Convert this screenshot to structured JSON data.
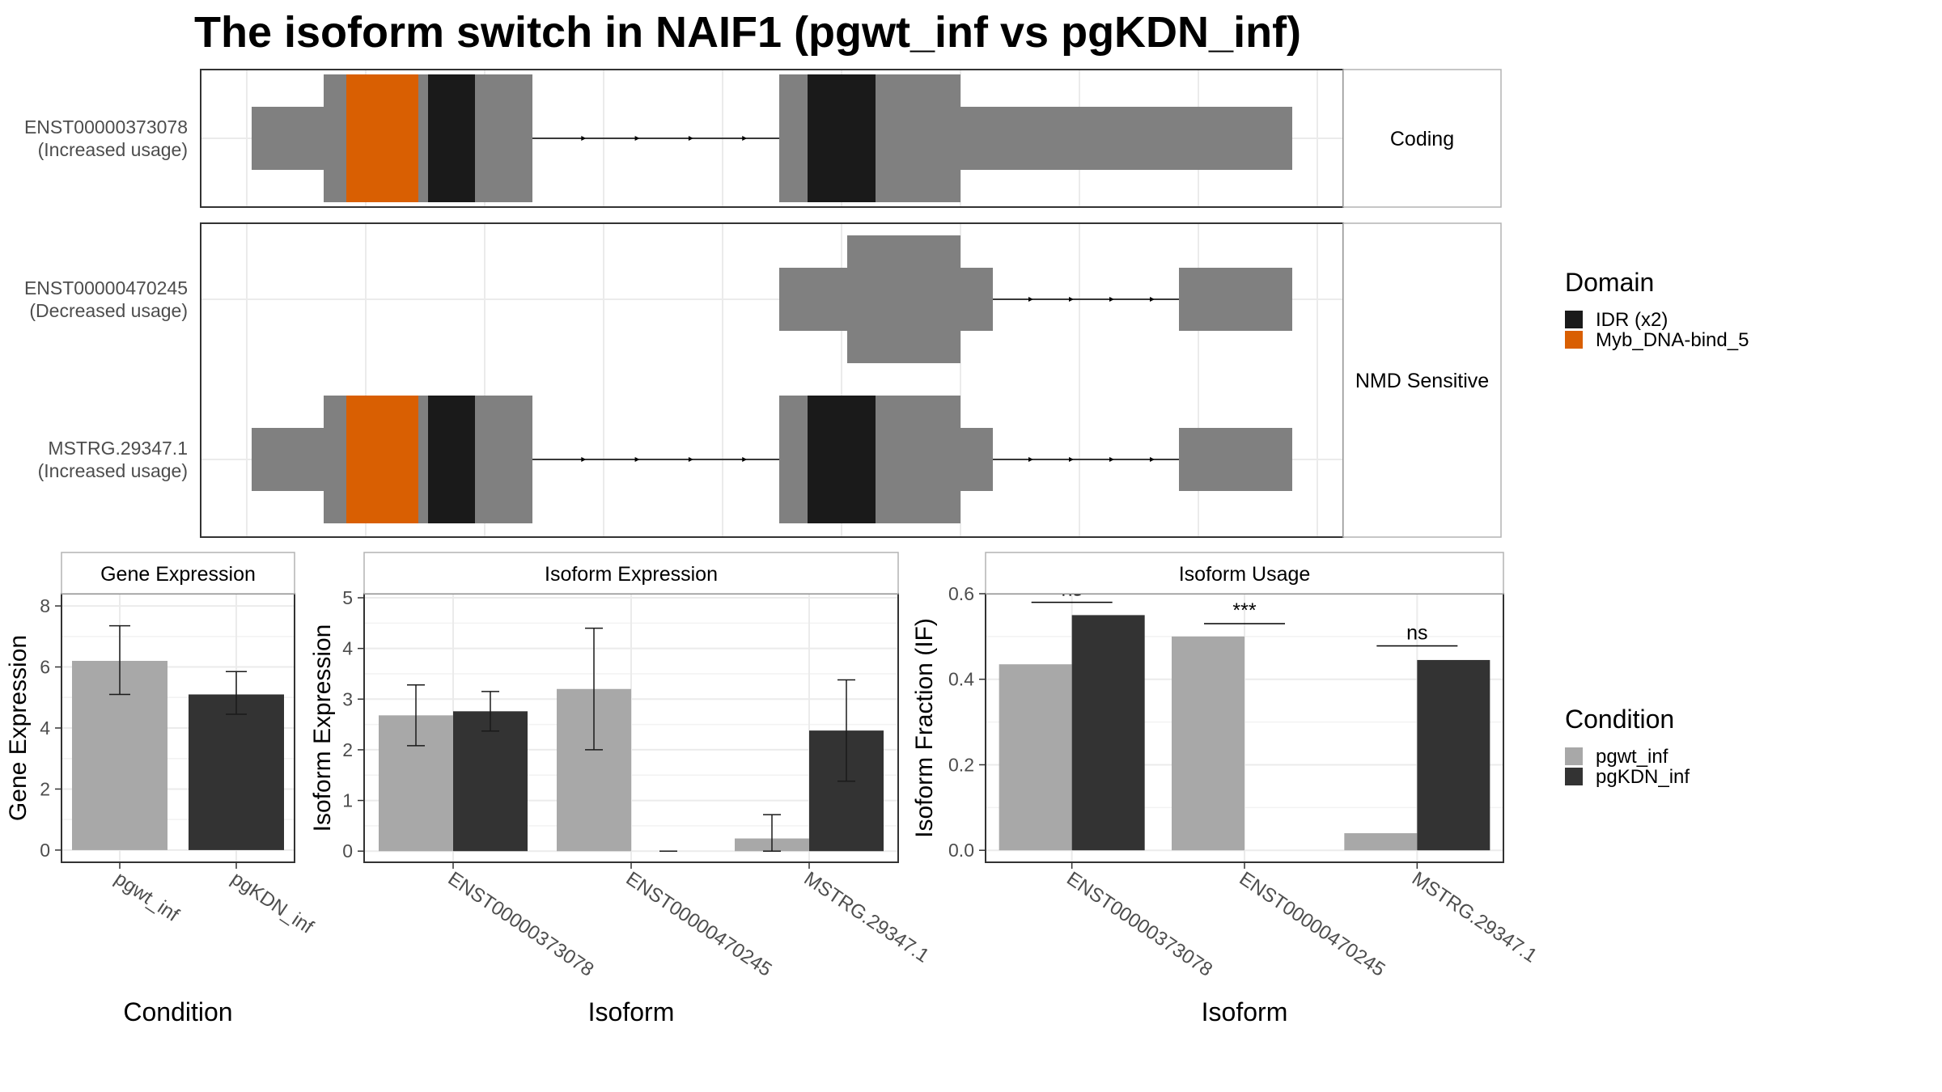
{
  "title": "The isoform switch in NAIF1 (pgwt_inf vs pgKDN_inf)",
  "colors": {
    "exon": "#808080",
    "idr": "#1a1a1a",
    "myb": "#d95f02",
    "pgwt": "#a8a8a8",
    "pgkdn": "#333333",
    "panel_border": "#333333",
    "grid": "#ebebeb",
    "strip_border": "#b3b3b3"
  },
  "structure": {
    "facets": [
      {
        "label": "Coding",
        "isoforms": [
          {
            "id": "ENST00000373078",
            "usage": "(Increased usage)",
            "model": "full_coding"
          }
        ]
      },
      {
        "label": "NMD Sensitive",
        "isoforms": [
          {
            "id": "ENST00000470245",
            "usage": "(Decreased usage)",
            "model": "short_nmd"
          },
          {
            "id": "MSTRG.29347.1",
            "usage": "(Increased usage)",
            "model": "full_nmd"
          }
        ]
      }
    ],
    "domain_legend": {
      "title": "Domain",
      "entries": [
        {
          "label": "IDR (x2)",
          "color_key": "idr"
        },
        {
          "label": "Myb_DNA-bind_5",
          "color_key": "myb"
        }
      ]
    }
  },
  "chart_data": [
    {
      "type": "bar",
      "panel": "Gene Expression",
      "categories": [
        "pgwt_inf",
        "pgKDN_inf"
      ],
      "values": [
        6.2,
        5.1
      ],
      "error_low": [
        5.1,
        4.45
      ],
      "error_high": [
        7.35,
        5.85
      ],
      "xlabel": "Condition",
      "ylabel": "Gene Expression",
      "ylim": [
        -0.4,
        8.4
      ],
      "yticks": [
        0,
        2,
        4,
        6,
        8
      ]
    },
    {
      "type": "bar",
      "panel": "Isoform Expression",
      "categories": [
        "ENST00000373078",
        "ENST00000470245",
        "MSTRG.29347.1"
      ],
      "series": [
        {
          "name": "pgwt_inf",
          "values": [
            2.68,
            3.2,
            0.25
          ],
          "error_low": [
            2.08,
            2.0,
            0.0
          ],
          "error_high": [
            3.28,
            4.4,
            0.72
          ]
        },
        {
          "name": "pgKDN_inf",
          "values": [
            2.76,
            0.0,
            2.38
          ],
          "error_low": [
            2.37,
            0.0,
            1.38
          ],
          "error_high": [
            3.15,
            0.0,
            3.38
          ]
        }
      ],
      "xlabel": "Isoform",
      "ylabel": "Isoform Expression",
      "ylim": [
        -0.22,
        5.08
      ],
      "yticks": [
        0,
        1,
        2,
        3,
        4,
        5
      ]
    },
    {
      "type": "bar",
      "panel": "Isoform Usage",
      "categories": [
        "ENST00000373078",
        "ENST00000470245",
        "MSTRG.29347.1"
      ],
      "series": [
        {
          "name": "pgwt_inf",
          "values": [
            0.435,
            0.5,
            0.04
          ]
        },
        {
          "name": "pgKDN_inf",
          "values": [
            0.55,
            0.0,
            0.445
          ]
        }
      ],
      "significance": [
        "ns",
        "***",
        "ns"
      ],
      "sig_y": [
        0.58,
        0.53,
        0.478
      ],
      "xlabel": "Isoform",
      "ylabel": "Isoform Fraction (IF)",
      "ylim": [
        -0.028,
        0.6
      ],
      "yticks": [
        0.0,
        0.2,
        0.4,
        0.6
      ],
      "ytick_labels": [
        "0.0",
        "0.2",
        "0.4",
        "0.6"
      ]
    }
  ],
  "condition_legend": {
    "title": "Condition",
    "entries": [
      {
        "label": "pgwt_inf",
        "color_key": "pgwt"
      },
      {
        "label": "pgKDN_inf",
        "color_key": "pgkdn"
      }
    ]
  }
}
